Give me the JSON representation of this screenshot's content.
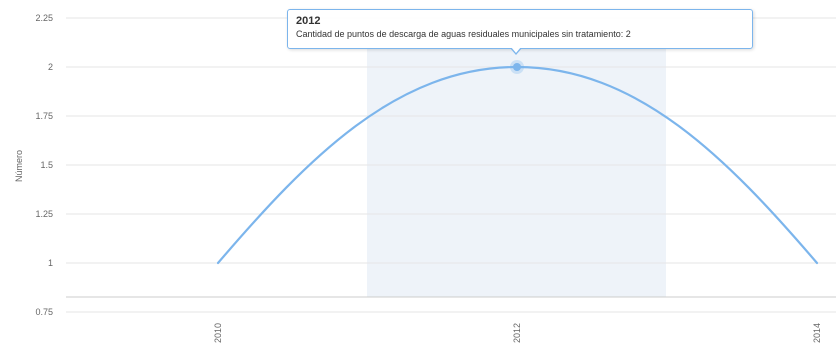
{
  "chart_data": {
    "type": "line",
    "x": [
      "2010",
      "2012",
      "2014"
    ],
    "series": [
      {
        "name": "Cantidad de puntos de descarga de aguas residuales municipales sin tratamiento",
        "values": [
          1,
          2,
          1
        ]
      }
    ],
    "ylabel": "Número",
    "xlabel": "",
    "ylim": [
      0.75,
      2.25
    ],
    "yticks": [
      "0.75",
      "1",
      "1.25",
      "1.5",
      "1.75",
      "2",
      "2.25"
    ],
    "grid": true,
    "colors": {
      "line": "#7cb5ec",
      "band": "#eef3f9",
      "grid": "#e6e6e6"
    }
  },
  "tooltip": {
    "title": "2012",
    "body": "Cantidad de puntos de descarga de aguas residuales municipales sin tratamiento: 2"
  }
}
